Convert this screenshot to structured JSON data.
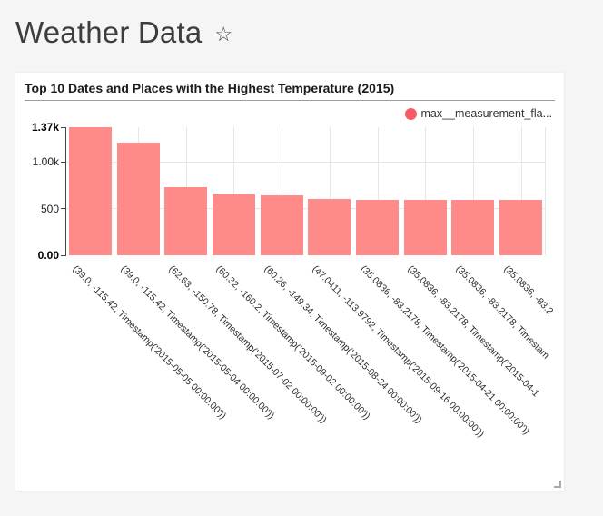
{
  "page": {
    "title": "Weather Data",
    "favorite_icon": "☆"
  },
  "card": {
    "title": "Top 10 Dates and Places with the Highest Temperature (2015)",
    "legend": {
      "label": "max__measurement_fla...",
      "color": "#fa5a64"
    }
  },
  "chart_data": {
    "type": "bar",
    "title": "Top 10 Dates and Places with the Highest Temperature (2015)",
    "series_name": "max__measurement_fla...",
    "bar_color": "#ff8a8a",
    "legend_position": "top-right",
    "grid": true,
    "ylim": [
      0,
      1370
    ],
    "yticks": [
      {
        "label": "0.00",
        "value": 0,
        "bold": true,
        "grid": false
      },
      {
        "label": "500",
        "value": 500,
        "bold": false,
        "grid": true
      },
      {
        "label": "1.00k",
        "value": 1000,
        "bold": false,
        "grid": true
      },
      {
        "label": "1.37k",
        "value": 1370,
        "bold": true,
        "grid": false
      }
    ],
    "categories": [
      "(39.0, -115.42, Timestamp('2015-05-05 00:00:00'))",
      "(39.0, -115.42, Timestamp('2015-05-04 00:00:00'))",
      "(62.63, -150.78, Timestamp('2015-07-02 00:00:00'))",
      "(60.32, -160.2, Timestamp('2015-09-02 00:00:00'))",
      "(60.26, -149.34, Timestamp('2015-08-24 00:00:00'))",
      "(47.0411, -113.9792, Timestamp('2015-09-16 00:00:00'))",
      "(35.0836, -83.2178, Timestamp('2015-04-21 00:00:00'))",
      "(35.0836, -83.2178, Timestamp('2015-04-1",
      "(35.0836, -83.2178, Timestam",
      "(35.0836, -83.2"
    ],
    "values": [
      1370,
      1200,
      730,
      648,
      638,
      599,
      596,
      594,
      592,
      590
    ]
  }
}
